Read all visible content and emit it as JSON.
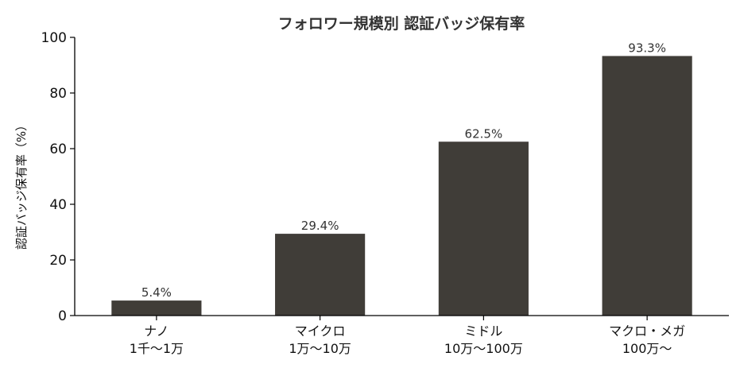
{
  "chart_data": {
    "type": "bar",
    "title": "フォロワー規模別 認証バッジ保有率",
    "xlabel": "",
    "ylabel": "認証バッジ保有率（%）",
    "ylim": [
      0,
      100
    ],
    "yticks": [
      0,
      20,
      40,
      60,
      80,
      100
    ],
    "categories": [
      [
        "ナノ",
        "1千〜1万"
      ],
      [
        "マイクロ",
        "1万〜10万"
      ],
      [
        "ミドル",
        "10万〜100万"
      ],
      [
        "マクロ・メガ",
        "100万〜"
      ]
    ],
    "values": [
      5.4,
      29.4,
      62.5,
      93.3
    ],
    "value_labels": [
      "5.4%",
      "29.4%",
      "62.5%",
      "93.3%"
    ],
    "bar_color": "#403d38",
    "grid": false,
    "legend": "none"
  }
}
